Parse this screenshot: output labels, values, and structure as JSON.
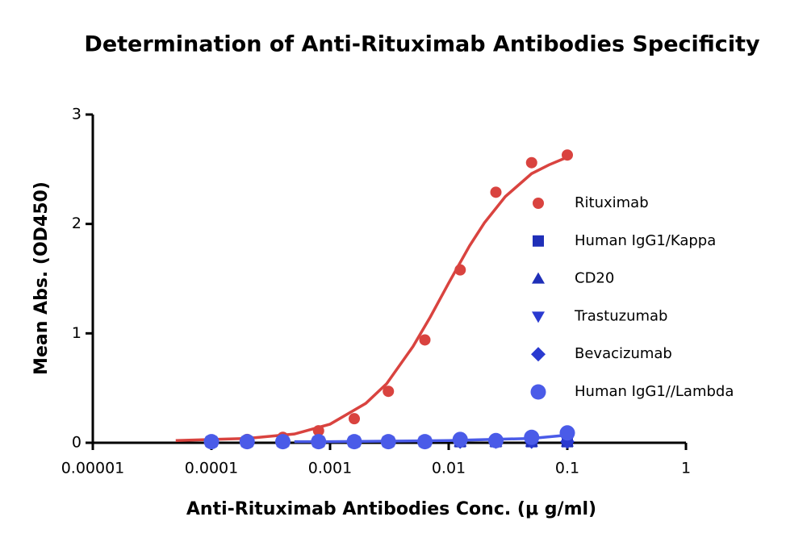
{
  "chart_data": {
    "type": "scatter",
    "title": "Determination of Anti-Rituximab Antibodies Specificity",
    "x_label": "Anti-Rituximab Antibodies Conc. (μ g/ml)",
    "y_label": "Mean Abs. (OD450)",
    "x_scale": "log",
    "xlim": [
      1e-05,
      1
    ],
    "xticks": [
      1e-05,
      0.0001,
      0.001,
      0.01,
      0.1,
      1
    ],
    "ylim": [
      0,
      3
    ],
    "yticks": [
      0,
      1,
      2,
      3
    ],
    "legend": "right",
    "x": [
      0.0001,
      0.0002,
      0.0004,
      0.0008,
      0.0016,
      0.0031,
      0.0063,
      0.0125,
      0.025,
      0.05,
      0.1
    ],
    "series": [
      {
        "name": "Rituximab",
        "color": "#d9433f",
        "marker": "circle",
        "values": [
          0.02,
          0.03,
          0.05,
          0.11,
          0.22,
          0.47,
          0.94,
          1.58,
          2.29,
          2.56,
          2.63
        ],
        "fit_x": [
          5e-05,
          0.0001,
          0.0002,
          0.0005,
          0.001,
          0.002,
          0.003,
          0.005,
          0.007,
          0.01,
          0.015,
          0.02,
          0.03,
          0.05,
          0.07,
          0.1
        ],
        "fit_values": [
          0.02,
          0.03,
          0.04,
          0.08,
          0.17,
          0.36,
          0.54,
          0.88,
          1.15,
          1.46,
          1.8,
          2.01,
          2.25,
          2.46,
          2.54,
          2.61
        ]
      },
      {
        "name": "Human IgG1/Kappa",
        "color": "#1f2fb8",
        "marker": "square",
        "values": [
          0.01,
          0.01,
          0.01,
          0.01,
          0.01,
          0.01,
          0.01,
          0.01,
          0.01,
          0.01,
          0.01
        ]
      },
      {
        "name": "CD20",
        "color": "#1f2fb8",
        "marker": "triangle-up",
        "values": [
          0.01,
          0.01,
          0.01,
          0.01,
          0.01,
          0.01,
          0.01,
          0.01,
          0.01,
          0.01,
          0.01
        ]
      },
      {
        "name": "Trastuzumab",
        "color": "#2a3ad0",
        "marker": "triangle-down",
        "values": [
          0.01,
          0.01,
          0.01,
          0.01,
          0.01,
          0.01,
          0.01,
          0.01,
          0.01,
          0.01,
          0.01
        ]
      },
      {
        "name": "Bevacizumab",
        "color": "#2a3ad0",
        "marker": "diamond",
        "values": [
          0.01,
          0.01,
          0.01,
          0.01,
          0.01,
          0.01,
          0.01,
          0.01,
          0.01,
          0.01,
          0.01
        ]
      },
      {
        "name": "Human IgG1//Lambda",
        "color": "#4a5be8",
        "marker": "circle-large",
        "values": [
          0.01,
          0.01,
          0.01,
          0.01,
          0.01,
          0.01,
          0.01,
          0.03,
          0.02,
          0.05,
          0.09
        ],
        "fit_x": [
          0.0005,
          0.001,
          0.01,
          0.05,
          0.1
        ],
        "fit_values": [
          0.01,
          0.01,
          0.02,
          0.04,
          0.07
        ]
      }
    ]
  }
}
